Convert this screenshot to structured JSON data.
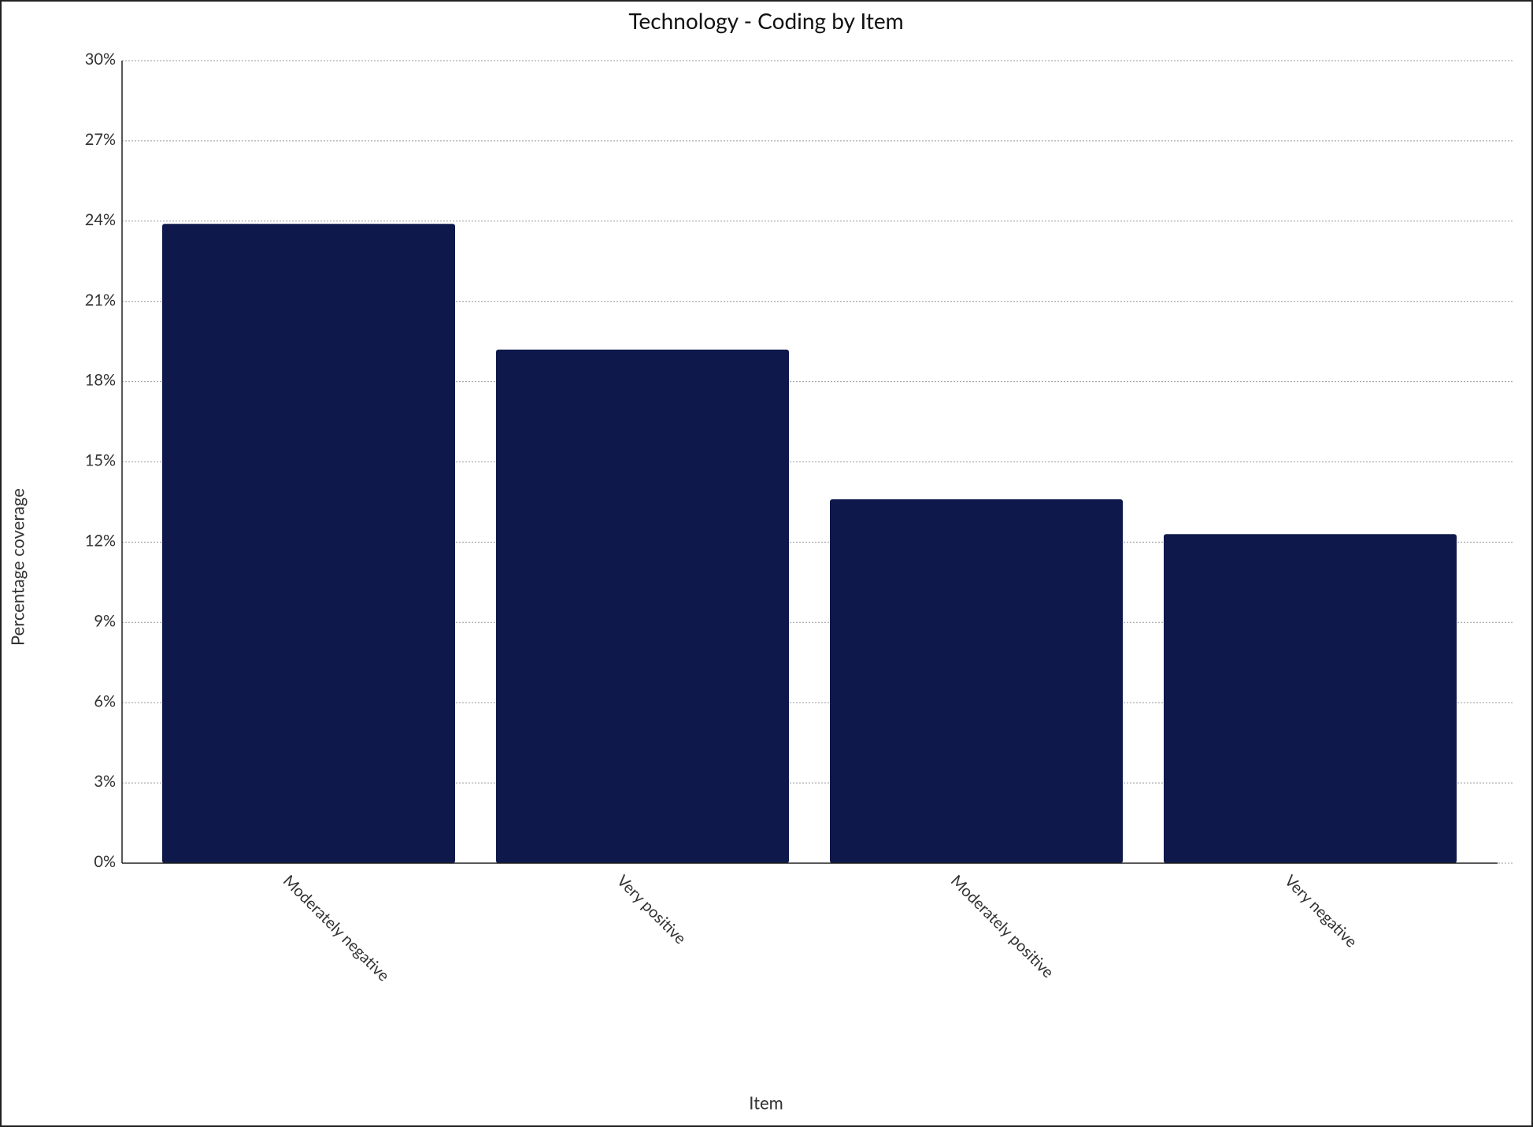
{
  "chart_data": {
    "type": "bar",
    "title": "Technology - Coding by Item",
    "x_label": "Item",
    "y_label": "Percentage coverage",
    "categories": [
      "Moderately negative",
      "Very positive",
      "Moderately positive",
      "Very negative"
    ],
    "values": [
      23.9,
      19.2,
      13.6,
      12.3
    ],
    "color": "#0e184b",
    "ylim": [
      0,
      30
    ],
    "yticks": [
      {
        "value": 0,
        "label": "0%"
      },
      {
        "value": 3,
        "label": "3%"
      },
      {
        "value": 6,
        "label": "6%"
      },
      {
        "value": 9,
        "label": "9%"
      },
      {
        "value": 12,
        "label": "12%"
      },
      {
        "value": 15,
        "label": "15%"
      },
      {
        "value": 18,
        "label": "18%"
      },
      {
        "value": 21,
        "label": "21%"
      },
      {
        "value": 24,
        "label": "24%"
      },
      {
        "value": 27,
        "label": "27%"
      },
      {
        "value": 30,
        "label": "30%"
      }
    ],
    "grid": true
  }
}
